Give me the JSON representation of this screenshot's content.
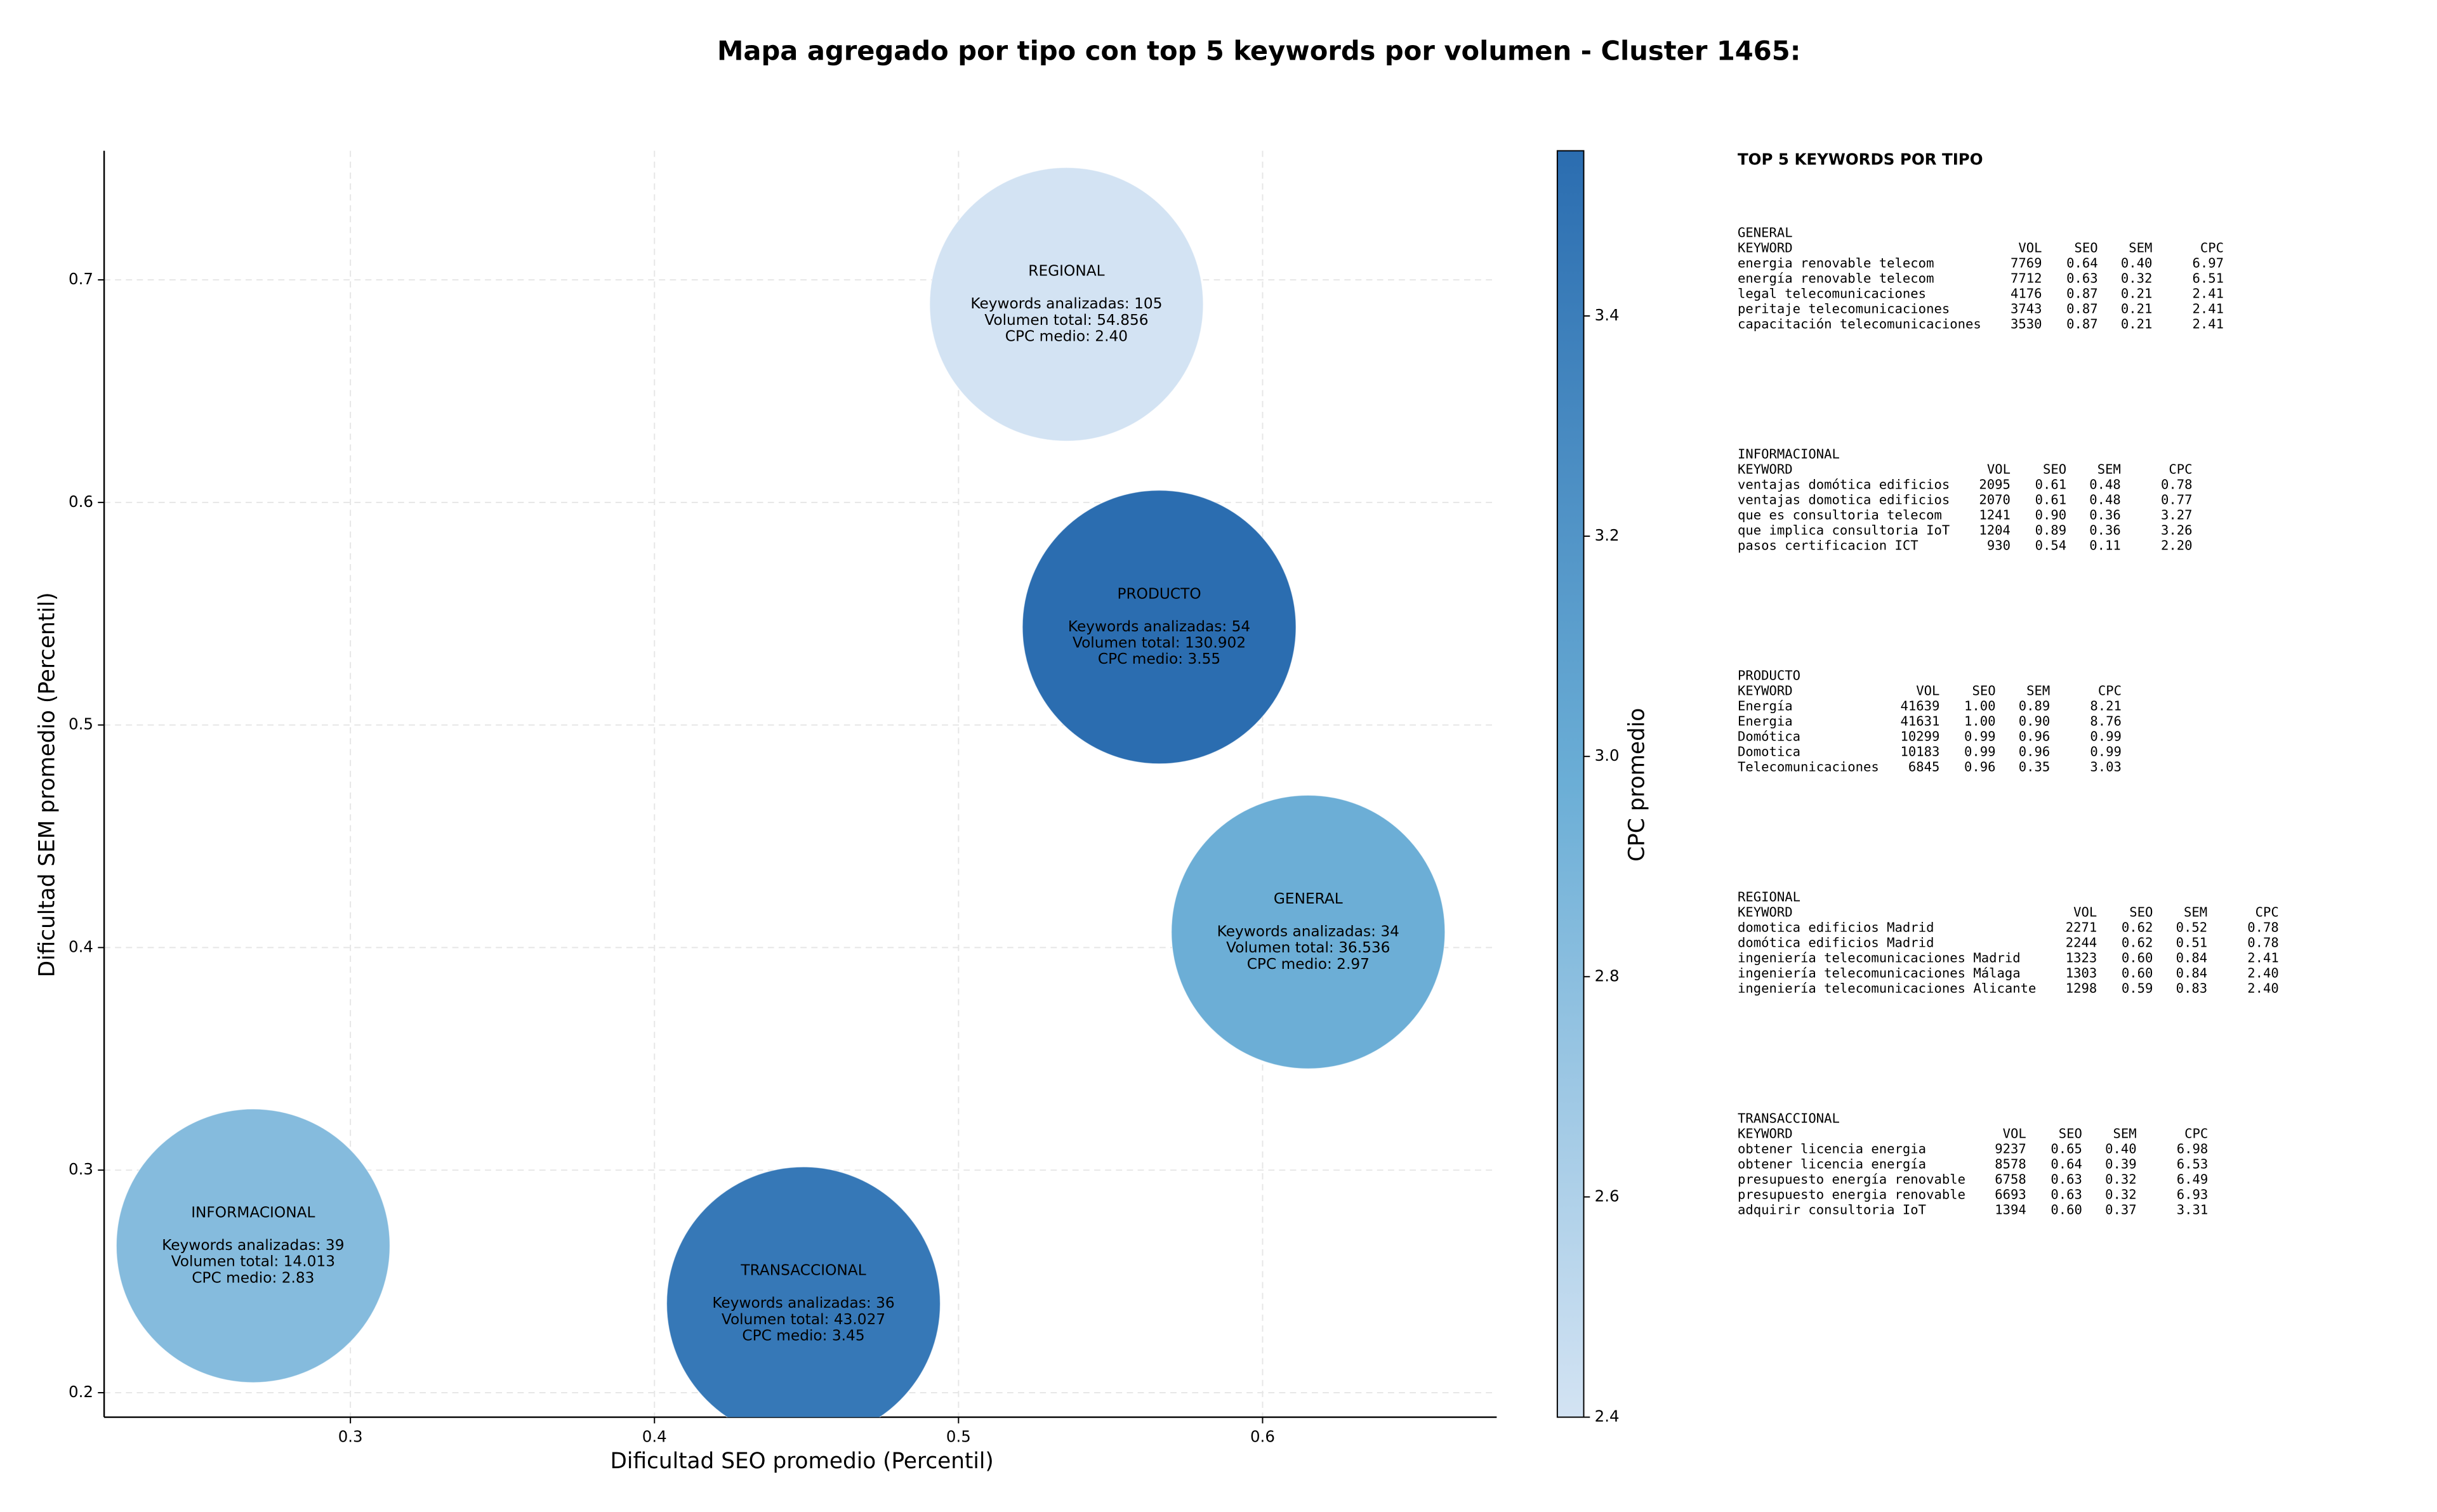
{
  "chart_data": {
    "type": "bubble",
    "title": "Mapa agregado por tipo con top 5 keywords por volumen - Cluster 1465:",
    "xlabel": "Dificultad SEO promedio (Percentil)",
    "ylabel": "Dificultad SEM promedio (Percentil)",
    "xlim": [
      0.219,
      0.677
    ],
    "ylim": [
      0.189,
      0.758
    ],
    "xticks": [
      0.3,
      0.4,
      0.5,
      0.6
    ],
    "yticks": [
      0.2,
      0.3,
      0.4,
      0.5,
      0.6,
      0.7
    ],
    "grid": true,
    "colorbar_label": "CPC promedio",
    "clim": [
      2.4,
      3.55
    ],
    "cticks": [
      2.4,
      2.6,
      2.8,
      {
        "value": 3,
        "label": "3.0"
      },
      3.2,
      3.4
    ],
    "colormap": [
      "#d3e3f3",
      "#6baed6",
      "#2b6db0"
    ],
    "points": [
      {
        "name": "REGIONAL",
        "x": 0.5355,
        "y": 0.689,
        "cpc": 2.4,
        "lines": [
          "Keywords analizadas: 105",
          "Volumen total: 54.856",
          "CPC medio: 2.40"
        ]
      },
      {
        "name": "PRODUCTO",
        "x": 0.566,
        "y": 0.544,
        "cpc": 3.55,
        "lines": [
          "Keywords analizadas: 54",
          "Volumen total: 130.902",
          "CPC medio: 3.55"
        ]
      },
      {
        "name": "GENERAL",
        "x": 0.615,
        "y": 0.407,
        "cpc": 2.97,
        "lines": [
          "Keywords analizadas: 34",
          "Volumen total: 36.536",
          "CPC medio: 2.97"
        ]
      },
      {
        "name": "INFORMACIONAL",
        "x": 0.268,
        "y": 0.266,
        "cpc": 2.83,
        "lines": [
          "Keywords analizadas: 39",
          "Volumen total: 14.013",
          "CPC medio: 2.83"
        ]
      },
      {
        "name": "TRANSACCIONAL",
        "x": 0.449,
        "y": 0.24,
        "cpc": 3.45,
        "lines": [
          "Keywords analizadas: 36",
          "Volumen total: 43.027",
          "CPC medio: 3.45"
        ]
      }
    ]
  },
  "side_panel": {
    "title": "TOP 5 KEYWORDS POR TIPO",
    "header": [
      "KEYWORD",
      "VOL",
      "SEO",
      "SEM",
      "CPC"
    ],
    "groups": [
      {
        "name": "GENERAL",
        "rows": [
          [
            "energia renovable telecom",
            "7769",
            "0.64",
            "0.40",
            "6.97"
          ],
          [
            "energía renovable telecom",
            "7712",
            "0.63",
            "0.32",
            "6.51"
          ],
          [
            "legal telecomunicaciones",
            "4176",
            "0.87",
            "0.21",
            "2.41"
          ],
          [
            "peritaje telecomunicaciones",
            "3743",
            "0.87",
            "0.21",
            "2.41"
          ],
          [
            "capacitación telecomunicaciones",
            "3530",
            "0.87",
            "0.21",
            "2.41"
          ]
        ]
      },
      {
        "name": "INFORMACIONAL",
        "rows": [
          [
            "ventajas domótica edificios",
            "2095",
            "0.61",
            "0.48",
            "0.78"
          ],
          [
            "ventajas domotica edificios",
            "2070",
            "0.61",
            "0.48",
            "0.77"
          ],
          [
            "que es consultoria telecom",
            "1241",
            "0.90",
            "0.36",
            "3.27"
          ],
          [
            "que implica consultoria IoT",
            "1204",
            "0.89",
            "0.36",
            "3.26"
          ],
          [
            "pasos certificacion ICT",
            "930",
            "0.54",
            "0.11",
            "2.20"
          ]
        ]
      },
      {
        "name": "PRODUCTO",
        "rows": [
          [
            "Energía",
            "41639",
            "1.00",
            "0.89",
            "8.21"
          ],
          [
            "Energia",
            "41631",
            "1.00",
            "0.90",
            "8.76"
          ],
          [
            "Domótica",
            "10299",
            "0.99",
            "0.96",
            "0.99"
          ],
          [
            "Domotica",
            "10183",
            "0.99",
            "0.96",
            "0.99"
          ],
          [
            "Telecomunicaciones",
            "6845",
            "0.96",
            "0.35",
            "3.03"
          ]
        ]
      },
      {
        "name": "REGIONAL",
        "rows": [
          [
            "domotica edificios Madrid",
            "2271",
            "0.62",
            "0.52",
            "0.78"
          ],
          [
            "domótica edificios Madrid",
            "2244",
            "0.62",
            "0.51",
            "0.78"
          ],
          [
            "ingeniería telecomunicaciones Madrid",
            "1323",
            "0.60",
            "0.84",
            "2.41"
          ],
          [
            "ingeniería telecomunicaciones Málaga",
            "1303",
            "0.60",
            "0.84",
            "2.40"
          ],
          [
            "ingeniería telecomunicaciones Alicante",
            "1298",
            "0.59",
            "0.83",
            "2.40"
          ]
        ]
      },
      {
        "name": "TRANSACCIONAL",
        "rows": [
          [
            "obtener licencia energia",
            "9237",
            "0.65",
            "0.40",
            "6.98"
          ],
          [
            "obtener licencia energía",
            "8578",
            "0.64",
            "0.39",
            "6.53"
          ],
          [
            "presupuesto energía renovable",
            "6758",
            "0.63",
            "0.32",
            "6.49"
          ],
          [
            "presupuesto energia renovable",
            "6693",
            "0.63",
            "0.32",
            "6.93"
          ],
          [
            "adquirir consultoria IoT",
            "1394",
            "0.60",
            "0.37",
            "3.31"
          ]
        ]
      }
    ]
  }
}
